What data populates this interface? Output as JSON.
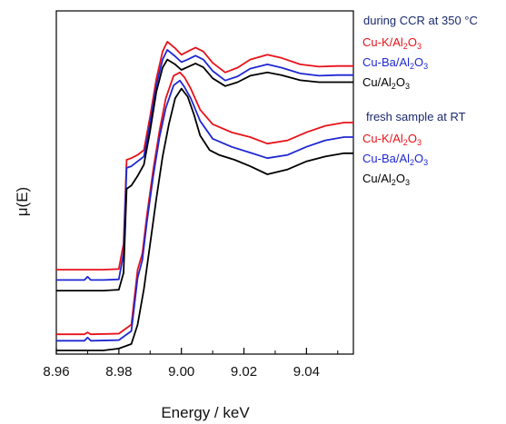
{
  "chart_data": {
    "type": "line",
    "xlabel": "Energy / keV",
    "ylabel": "μ(E)",
    "xlim": [
      8.96,
      9.055
    ],
    "ylim": [
      0,
      1
    ],
    "xticks": [
      "8.96",
      "8.98",
      "9.00",
      "9.02",
      "9.04"
    ],
    "xtick_values": [
      8.96,
      8.98,
      9.0,
      9.02,
      9.04
    ],
    "grid": false,
    "legend_position": "right",
    "groups": [
      {
        "heading": "during CCR at 350 °C",
        "series": [
          {
            "name": "Cu-K/Al2O3",
            "base": "Cu-K/Al",
            "sub1": "2",
            "mid": "O",
            "sub2": "3",
            "color": "#e8121a",
            "x": [
              8.96,
              8.975,
              8.98,
              8.9815,
              8.9825,
              8.984,
              8.986,
              8.988,
              8.99,
              8.992,
              8.994,
              8.9955,
              8.998,
              9.0,
              9.002,
              9.0045,
              9.007,
              9.01,
              9.014,
              9.018,
              9.022,
              9.0275,
              9.032,
              9.038,
              9.044,
              9.05,
              9.055
            ],
            "y": [
              0.25,
              0.25,
              0.252,
              0.33,
              0.59,
              0.595,
              0.605,
              0.62,
              0.725,
              0.84,
              0.925,
              0.955,
              0.935,
              0.915,
              0.925,
              0.937,
              0.925,
              0.89,
              0.86,
              0.875,
              0.9,
              0.915,
              0.905,
              0.885,
              0.878,
              0.88,
              0.88
            ]
          },
          {
            "name": "Cu-Ba/Al2O3",
            "base": "Cu-Ba/Al",
            "sub1": "2",
            "mid": "O",
            "sub2": "3",
            "color": "#1e28d2",
            "x": [
              8.96,
              8.969,
              8.97,
              8.971,
              8.975,
              8.98,
              8.9815,
              8.9825,
              8.984,
              8.986,
              8.988,
              8.99,
              8.992,
              8.994,
              8.9955,
              8.998,
              9.0,
              9.002,
              9.0045,
              9.007,
              9.01,
              9.014,
              9.018,
              9.022,
              9.0275,
              9.032,
              9.038,
              9.044,
              9.05,
              9.055
            ],
            "y": [
              0.218,
              0.218,
              0.228,
              0.218,
              0.218,
              0.22,
              0.3,
              0.565,
              0.57,
              0.585,
              0.6,
              0.705,
              0.82,
              0.9,
              0.93,
              0.91,
              0.892,
              0.9,
              0.912,
              0.9,
              0.865,
              0.835,
              0.848,
              0.872,
              0.885,
              0.875,
              0.857,
              0.85,
              0.852,
              0.852
            ]
          },
          {
            "name": "Cu/Al2O3",
            "base": "Cu/Al",
            "sub1": "2",
            "mid": "O",
            "sub2": "3",
            "color": "#000000",
            "x": [
              8.96,
              8.975,
              8.98,
              8.9815,
              8.9825,
              8.984,
              8.986,
              8.988,
              8.99,
              8.992,
              8.994,
              8.9955,
              8.998,
              9.0,
              9.002,
              9.0045,
              9.007,
              9.01,
              9.014,
              9.018,
              9.022,
              9.0275,
              9.032,
              9.038,
              9.044,
              9.05,
              9.055
            ],
            "y": [
              0.185,
              0.185,
              0.188,
              0.24,
              0.5,
              0.51,
              0.54,
              0.575,
              0.68,
              0.8,
              0.875,
              0.9,
              0.885,
              0.868,
              0.877,
              0.888,
              0.876,
              0.842,
              0.818,
              0.83,
              0.85,
              0.86,
              0.852,
              0.836,
              0.83,
              0.83,
              0.83
            ]
          }
        ]
      },
      {
        "heading": "fresh sample at RT",
        "series": [
          {
            "name": "Cu-K/Al2O3",
            "base": "Cu-K/Al",
            "sub1": "2",
            "mid": "O",
            "sub2": "3",
            "color": "#e8121a",
            "x": [
              8.96,
              8.969,
              8.97,
              8.971,
              8.98,
              8.984,
              8.986,
              8.9875,
              8.989,
              8.991,
              8.993,
              8.995,
              8.9975,
              8.9995,
              9.001,
              9.003,
              9.006,
              9.01,
              9.016,
              9.022,
              9.0275,
              9.034,
              9.04,
              9.046,
              9.052,
              9.055
            ],
            "y": [
              0.05,
              0.05,
              0.056,
              0.05,
              0.052,
              0.08,
              0.25,
              0.3,
              0.42,
              0.56,
              0.68,
              0.78,
              0.85,
              0.86,
              0.845,
              0.81,
              0.745,
              0.7,
              0.675,
              0.66,
              0.64,
              0.65,
              0.675,
              0.695,
              0.705,
              0.705
            ]
          },
          {
            "name": "Cu-Ba/Al2O3",
            "base": "Cu-Ba/Al",
            "sub1": "2",
            "mid": "O",
            "sub2": "3",
            "color": "#1e28d2",
            "x": [
              8.96,
              8.969,
              8.97,
              8.971,
              8.98,
              8.984,
              8.986,
              8.9875,
              8.989,
              8.991,
              8.993,
              8.995,
              8.9975,
              8.9995,
              9.001,
              9.003,
              9.006,
              9.01,
              9.016,
              9.022,
              9.0275,
              9.034,
              9.04,
              9.046,
              9.052,
              9.055
            ],
            "y": [
              0.03,
              0.03,
              0.04,
              0.03,
              0.032,
              0.06,
              0.225,
              0.28,
              0.4,
              0.54,
              0.66,
              0.75,
              0.82,
              0.835,
              0.815,
              0.78,
              0.71,
              0.655,
              0.63,
              0.612,
              0.595,
              0.605,
              0.63,
              0.65,
              0.66,
              0.66
            ]
          },
          {
            "name": "Cu/Al2O3",
            "base": "Cu/Al",
            "sub1": "2",
            "mid": "O",
            "sub2": "3",
            "color": "#000000",
            "x": [
              8.96,
              8.975,
              8.98,
              8.984,
              8.986,
              8.988,
              8.99,
              8.992,
              8.994,
              8.996,
              8.998,
              9.0,
              9.002,
              9.004,
              9.006,
              9.009,
              9.012,
              9.017,
              9.022,
              9.0275,
              9.034,
              9.04,
              9.046,
              9.052,
              9.055
            ],
            "y": [
              0.0,
              0.0,
              0.006,
              0.02,
              0.08,
              0.19,
              0.33,
              0.47,
              0.6,
              0.7,
              0.78,
              0.81,
              0.785,
              0.73,
              0.665,
              0.62,
              0.605,
              0.59,
              0.57,
              0.545,
              0.56,
              0.585,
              0.6,
              0.61,
              0.61
            ]
          }
        ]
      }
    ]
  }
}
